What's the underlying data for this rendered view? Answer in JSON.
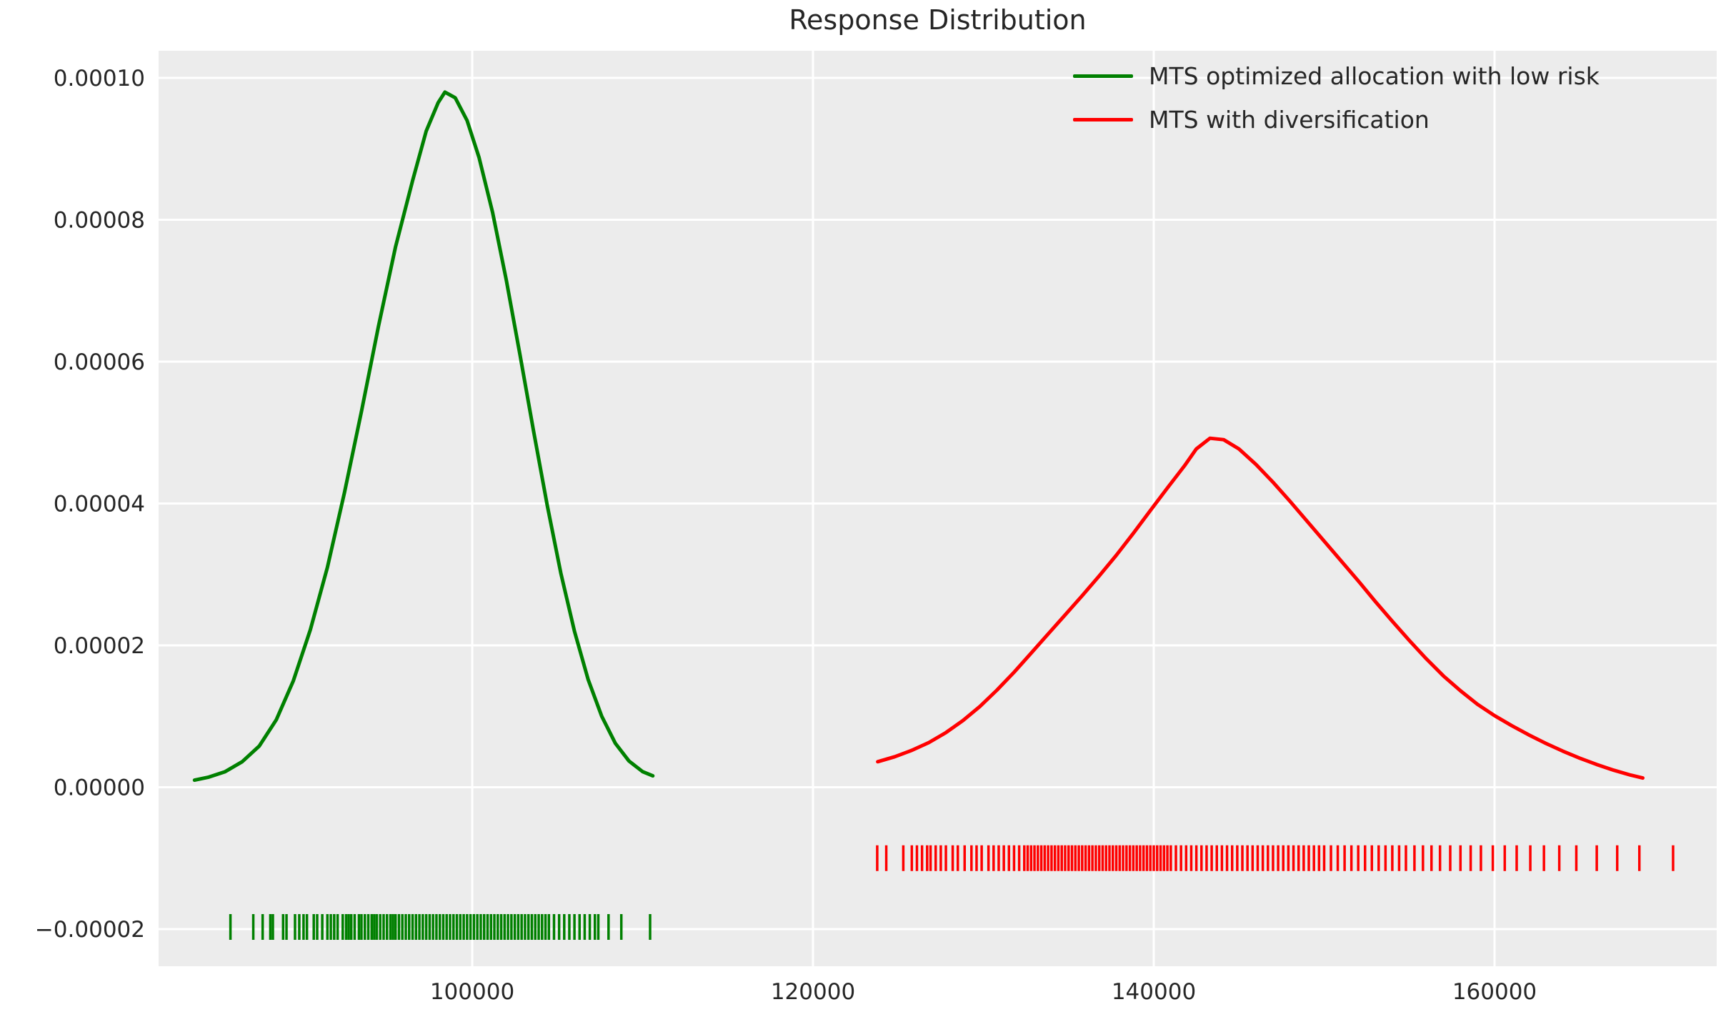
{
  "figure": {
    "background": "#ffffff",
    "plot_background": "#ececec",
    "grid_color": "#ffffff",
    "text_color": "#262626"
  },
  "chart_data": {
    "type": "line",
    "subtype": "kde-distribution-with-rug",
    "title": "Response Distribution",
    "xlabel": "",
    "ylabel": "",
    "grid": true,
    "legend_position": "upper right",
    "xlim": [
      81593,
      173040
    ],
    "ylim": [
      -2.524e-05,
      0.00010383
    ],
    "x_ticks": [
      {
        "v": 100000,
        "label": "100000"
      },
      {
        "v": 120000,
        "label": "120000"
      },
      {
        "v": 140000,
        "label": "140000"
      },
      {
        "v": 160000,
        "label": "160000"
      }
    ],
    "y_ticks": [
      {
        "v": 0.0001,
        "label": "0.00010"
      },
      {
        "v": 8e-05,
        "label": "0.00008"
      },
      {
        "v": 6e-05,
        "label": "0.00006"
      },
      {
        "v": 4e-05,
        "label": "0.00004"
      },
      {
        "v": 2e-05,
        "label": "0.00002"
      },
      {
        "v": 0.0,
        "label": "0.00000"
      },
      {
        "v": -2e-05,
        "label": "−0.00002"
      }
    ],
    "series": [
      {
        "name": "MTS optimized allocation with low risk",
        "color": "#008000",
        "peak_x": 98400,
        "peak_y": 9.8e-05,
        "points": [
          [
            83700,
            1e-06
          ],
          [
            84500,
            1.4e-06
          ],
          [
            85500,
            2.2e-06
          ],
          [
            86500,
            3.6e-06
          ],
          [
            87500,
            5.8e-06
          ],
          [
            88500,
            9.5e-06
          ],
          [
            89500,
            1.5e-05
          ],
          [
            90500,
            2.22e-05
          ],
          [
            91500,
            3.1e-05
          ],
          [
            92500,
            4.15e-05
          ],
          [
            93500,
            5.3e-05
          ],
          [
            94500,
            6.5e-05
          ],
          [
            95500,
            7.62e-05
          ],
          [
            96500,
            8.55e-05
          ],
          [
            97300,
            9.25e-05
          ],
          [
            98000,
            9.65e-05
          ],
          [
            98400,
            9.8e-05
          ],
          [
            99000,
            9.72e-05
          ],
          [
            99700,
            9.4e-05
          ],
          [
            100400,
            8.88e-05
          ],
          [
            101200,
            8.1e-05
          ],
          [
            102000,
            7.15e-05
          ],
          [
            102800,
            6.1e-05
          ],
          [
            103600,
            5.02e-05
          ],
          [
            104400,
            3.98e-05
          ],
          [
            105200,
            3.02e-05
          ],
          [
            106000,
            2.2e-05
          ],
          [
            106800,
            1.52e-05
          ],
          [
            107600,
            1e-05
          ],
          [
            108400,
            6.2e-06
          ],
          [
            109200,
            3.7e-06
          ],
          [
            110000,
            2.2e-06
          ],
          [
            110600,
            1.6e-06
          ]
        ],
        "rug_offset": -1.97e-05,
        "rug": [
          85810,
          87150,
          87700,
          88150,
          88300,
          88900,
          89100,
          89600,
          89850,
          90100,
          90300,
          90700,
          90900,
          91200,
          91500,
          91700,
          91900,
          92100,
          92400,
          92600,
          92750,
          92900,
          93100,
          93350,
          93500,
          93700,
          93900,
          94100,
          94250,
          94400,
          94600,
          94800,
          95000,
          95200,
          95350,
          95500,
          95700,
          95900,
          96100,
          96300,
          96500,
          96700,
          96900,
          97100,
          97300,
          97500,
          97700,
          97900,
          98100,
          98300,
          98500,
          98700,
          98900,
          99100,
          99300,
          99500,
          99700,
          99900,
          100100,
          100300,
          100500,
          100700,
          100900,
          101100,
          101300,
          101500,
          101700,
          101900,
          102100,
          102300,
          102500,
          102700,
          102900,
          103100,
          103300,
          103500,
          103700,
          103900,
          104100,
          104300,
          104500,
          104800,
          105100,
          105400,
          105700,
          106000,
          106300,
          106600,
          106900,
          107200,
          107400,
          108000,
          108750,
          110440
        ]
      },
      {
        "name": "MTS with diversification",
        "color": "#ff0000",
        "peak_x": 143300,
        "peak_y": 4.92e-05,
        "points": [
          [
            123800,
            3.6e-06
          ],
          [
            124800,
            4.3e-06
          ],
          [
            125800,
            5.2e-06
          ],
          [
            126800,
            6.3e-06
          ],
          [
            127800,
            7.7e-06
          ],
          [
            128800,
            9.4e-06
          ],
          [
            129800,
            1.14e-05
          ],
          [
            130800,
            1.37e-05
          ],
          [
            131800,
            1.62e-05
          ],
          [
            132800,
            1.89e-05
          ],
          [
            133800,
            2.16e-05
          ],
          [
            134800,
            2.43e-05
          ],
          [
            135800,
            2.7e-05
          ],
          [
            136800,
            2.98e-05
          ],
          [
            137800,
            3.27e-05
          ],
          [
            138800,
            3.58e-05
          ],
          [
            139800,
            3.9e-05
          ],
          [
            140800,
            4.22e-05
          ],
          [
            141800,
            4.53e-05
          ],
          [
            142500,
            4.77e-05
          ],
          [
            143300,
            4.92e-05
          ],
          [
            144100,
            4.9e-05
          ],
          [
            145000,
            4.77e-05
          ],
          [
            146000,
            4.55e-05
          ],
          [
            147000,
            4.3e-05
          ],
          [
            148000,
            4.03e-05
          ],
          [
            149000,
            3.75e-05
          ],
          [
            150000,
            3.47e-05
          ],
          [
            151000,
            3.19e-05
          ],
          [
            152000,
            2.91e-05
          ],
          [
            153000,
            2.62e-05
          ],
          [
            154000,
            2.34e-05
          ],
          [
            155000,
            2.07e-05
          ],
          [
            156000,
            1.81e-05
          ],
          [
            157000,
            1.57e-05
          ],
          [
            158000,
            1.36e-05
          ],
          [
            159000,
            1.17e-05
          ],
          [
            160000,
            1.01e-05
          ],
          [
            161000,
            8.7e-06
          ],
          [
            162000,
            7.4e-06
          ],
          [
            163000,
            6.2e-06
          ],
          [
            164000,
            5.1e-06
          ],
          [
            165000,
            4.1e-06
          ],
          [
            166000,
            3.2e-06
          ],
          [
            167000,
            2.4e-06
          ],
          [
            168000,
            1.7e-06
          ],
          [
            168700,
            1.3e-06
          ]
        ],
        "rug_offset": -1e-05,
        "rug": [
          123770,
          124300,
          125300,
          125800,
          126100,
          126400,
          126700,
          126900,
          127200,
          127500,
          127800,
          128200,
          128500,
          128900,
          129300,
          129600,
          129900,
          130300,
          130600,
          130900,
          131200,
          131500,
          131800,
          132100,
          132400,
          132600,
          132800,
          133000,
          133200,
          133400,
          133600,
          133800,
          134000,
          134200,
          134400,
          134600,
          134800,
          135000,
          135200,
          135400,
          135600,
          135800,
          136000,
          136200,
          136400,
          136600,
          136800,
          137000,
          137200,
          137400,
          137600,
          137800,
          138000,
          138200,
          138400,
          138600,
          138800,
          139000,
          139200,
          139400,
          139600,
          139800,
          140000,
          140200,
          140400,
          140600,
          140800,
          141000,
          141300,
          141600,
          141900,
          142200,
          142500,
          142800,
          143100,
          143400,
          143700,
          144000,
          144300,
          144600,
          144900,
          145200,
          145500,
          145800,
          146100,
          146400,
          146700,
          147000,
          147300,
          147600,
          147900,
          148200,
          148500,
          148800,
          149100,
          149400,
          149700,
          150000,
          150400,
          150800,
          151200,
          151600,
          152000,
          152400,
          152800,
          153200,
          153600,
          154000,
          154400,
          154800,
          155300,
          155800,
          156300,
          156800,
          157400,
          158000,
          158600,
          159200,
          159900,
          160600,
          161300,
          162100,
          162900,
          163800,
          164800,
          166000,
          167200,
          168500,
          170480
        ]
      }
    ]
  }
}
